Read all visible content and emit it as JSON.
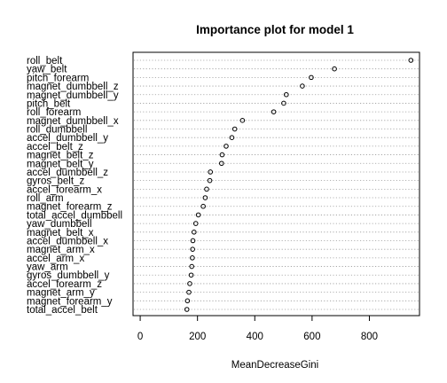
{
  "chart_data": {
    "type": "dotchart",
    "title": "Importance plot for model 1",
    "xlabel": "MeanDecreaseGini",
    "ylabel": "",
    "xlim": [
      -25,
      975
    ],
    "xticks": [
      0,
      200,
      400,
      600,
      800
    ],
    "grid": "dotted horizontal lines per variable",
    "categories": [
      "roll_belt",
      "yaw_belt",
      "pitch_forearm",
      "magnet_dumbbell_z",
      "magnet_dumbbell_y",
      "pitch_belt",
      "roll_forearm",
      "magnet_dumbbell_x",
      "roll_dumbbell",
      "accel_dumbbell_y",
      "accel_belt_z",
      "magnet_belt_z",
      "magnet_belt_y",
      "accel_dumbbell_z",
      "gyros_belt_z",
      "accel_forearm_x",
      "roll_arm",
      "magnet_forearm_z",
      "total_accel_dumbbell",
      "yaw_dumbbell",
      "magnet_belt_x",
      "accel_dumbbell_x",
      "magnet_arm_x",
      "accel_arm_x",
      "yaw_arm",
      "gyros_dumbbell_y",
      "accel_forearm_z",
      "magnet_arm_y",
      "magnet_forearm_y",
      "total_accel_belt"
    ],
    "values": [
      945,
      678,
      597,
      566,
      510,
      501,
      466,
      357,
      330,
      320,
      300,
      286,
      284,
      245,
      243,
      232,
      227,
      220,
      203,
      194,
      188,
      184,
      183,
      182,
      180,
      178,
      173,
      170,
      165,
      163
    ]
  }
}
